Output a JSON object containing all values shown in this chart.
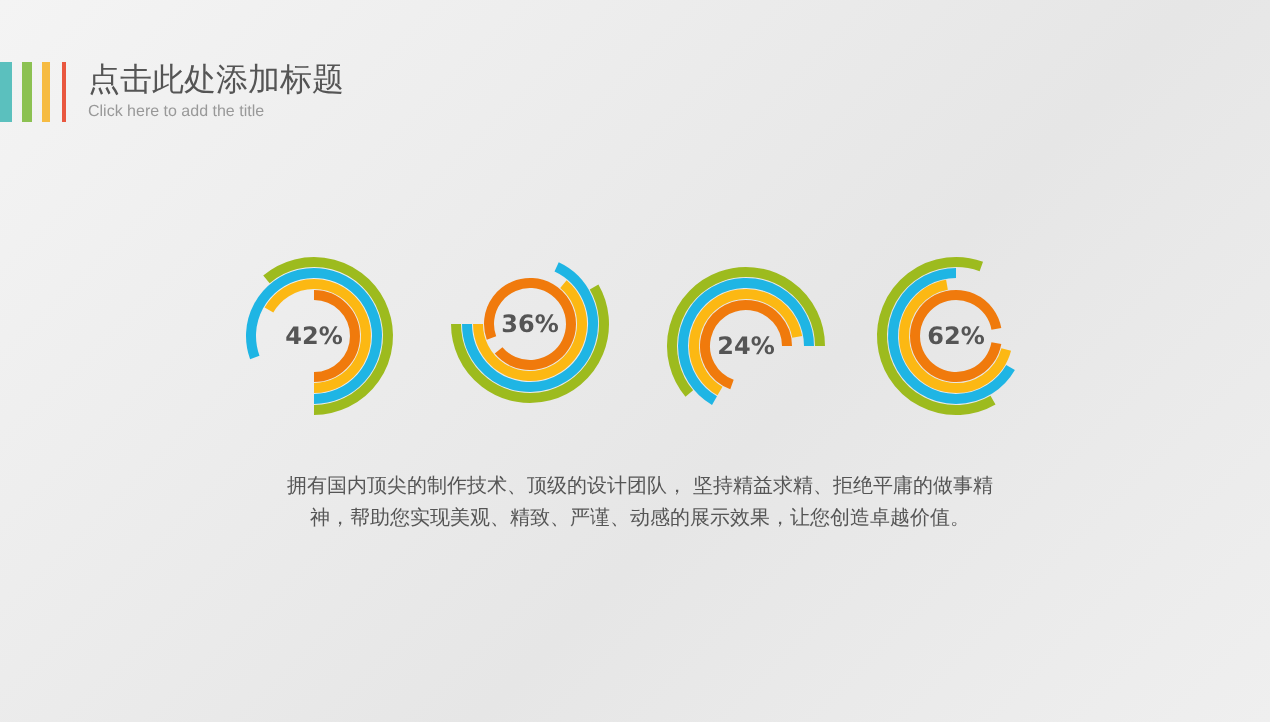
{
  "chart_data": [
    {
      "type": "other",
      "title": "点击此处添加标题",
      "subtitle": "Click here to add the title",
      "annotations": [
        "拥有国内顶尖的制作技术、顶级的设计团队， 坚持精益求精、拒绝平庸的做事精神，帮助您实现美观、精致、严谨、动感的展示效果，让您创造卓越价值。"
      ]
    },
    {
      "type": "other",
      "categories": [
        null
      ],
      "values": [
        42
      ],
      "value_labels": [
        "42%"
      ]
    },
    {
      "type": "other",
      "categories": [
        null
      ],
      "values": [
        36
      ],
      "value_labels": [
        "36%"
      ]
    },
    {
      "type": "other",
      "categories": [
        null
      ],
      "values": [
        24
      ],
      "value_labels": [
        "24%"
      ]
    },
    {
      "type": "other",
      "categories": [
        null
      ],
      "values": [
        62
      ],
      "value_labels": [
        "62%"
      ]
    }
  ]
}
